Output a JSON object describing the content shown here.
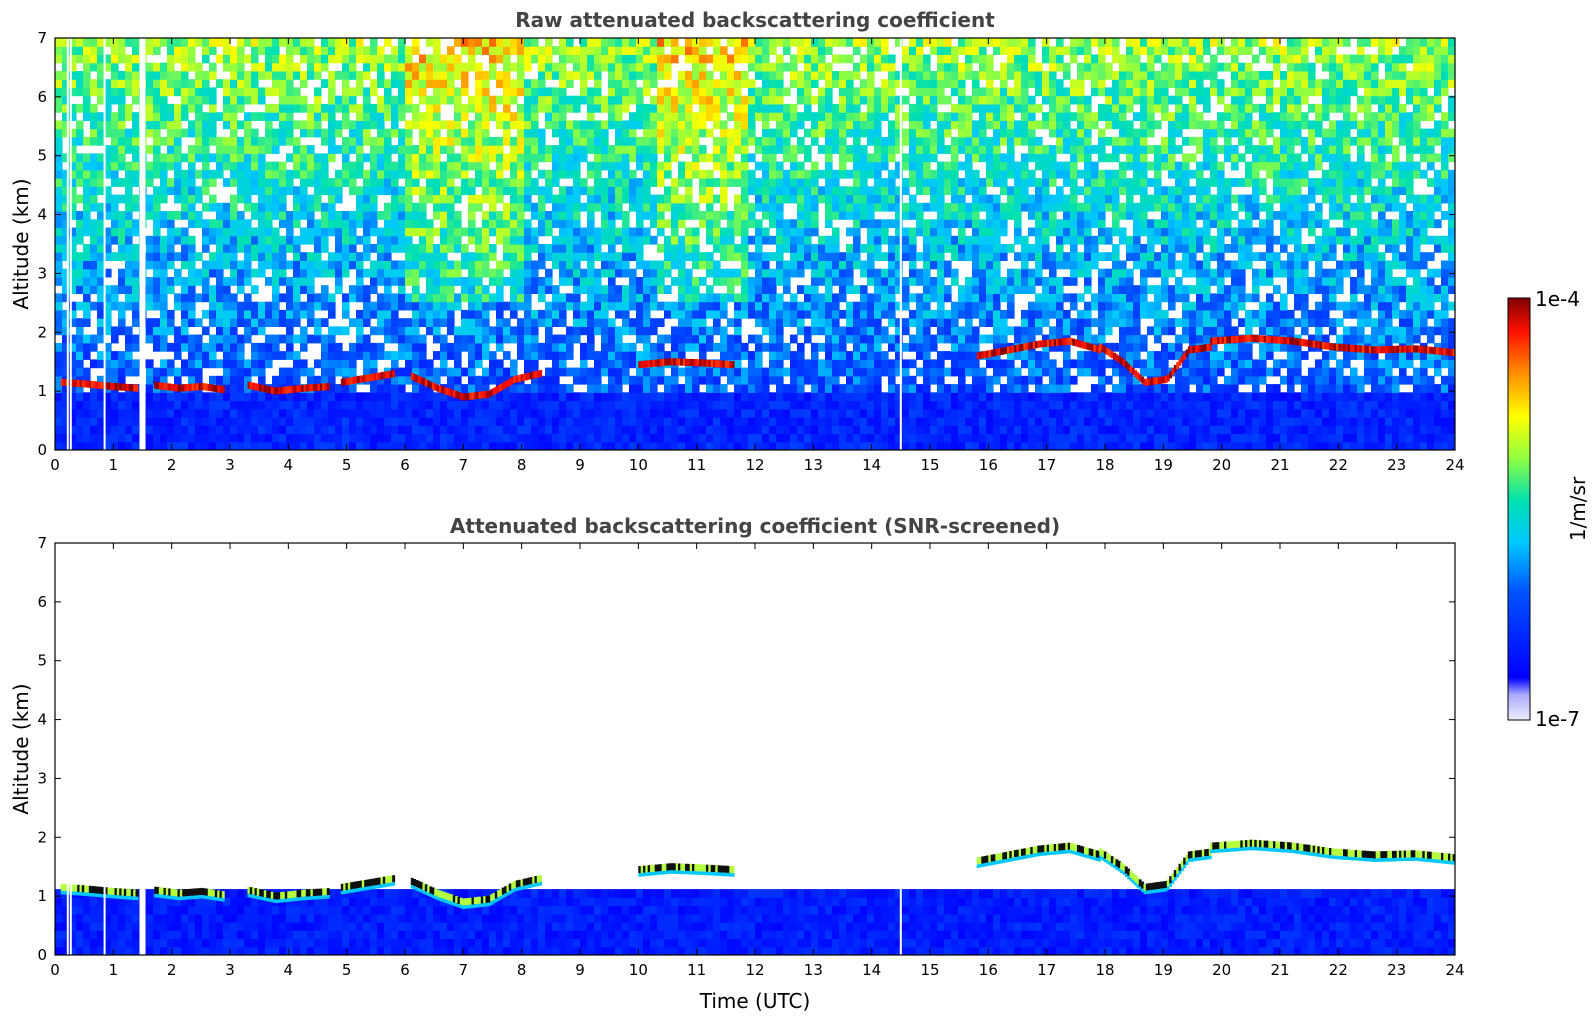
{
  "chart_data": [
    {
      "type": "heatmap",
      "title": "Raw attenuated backscattering coefficient",
      "xlabel": "",
      "ylabel": "Altitude (km)",
      "xlim": [
        0,
        24
      ],
      "ylim": [
        0,
        7
      ],
      "x_ticks": [
        0,
        1,
        2,
        3,
        4,
        5,
        6,
        7,
        8,
        9,
        10,
        11,
        12,
        13,
        14,
        15,
        16,
        17,
        18,
        19,
        20,
        21,
        22,
        23,
        24
      ],
      "y_ticks": [
        0,
        1,
        2,
        3,
        4,
        5,
        6,
        7
      ],
      "screened": false,
      "cloud_layers": [
        {
          "t_start": 0.1,
          "t_end": 1.4,
          "altitude_km": [
            1.15,
            1.12,
            1.08,
            1.05
          ]
        },
        {
          "t_start": 1.7,
          "t_end": 2.9,
          "altitude_km": [
            1.1,
            1.05,
            1.08,
            1.02
          ]
        },
        {
          "t_start": 3.3,
          "t_end": 4.7,
          "altitude_km": [
            1.1,
            1.0,
            1.05,
            1.08
          ]
        },
        {
          "t_start": 4.9,
          "t_end": 5.8,
          "altitude_km": [
            1.15,
            1.2,
            1.25,
            1.3
          ]
        },
        {
          "t_start": 6.1,
          "t_end": 8.3,
          "altitude_km": [
            1.25,
            1.05,
            0.9,
            0.95,
            1.2,
            1.3
          ]
        },
        {
          "t_start": 10.0,
          "t_end": 11.6,
          "altitude_km": [
            1.45,
            1.5,
            1.48,
            1.45
          ]
        },
        {
          "t_start": 15.8,
          "t_end": 17.9,
          "altitude_km": [
            1.6,
            1.7,
            1.8,
            1.85,
            1.7
          ]
        },
        {
          "t_start": 17.9,
          "t_end": 19.8,
          "altitude_km": [
            1.75,
            1.5,
            1.15,
            1.2,
            1.7,
            1.75
          ]
        },
        {
          "t_start": 19.8,
          "t_end": 24.0,
          "altitude_km": [
            1.85,
            1.9,
            1.85,
            1.75,
            1.7,
            1.72,
            1.65
          ]
        }
      ],
      "gaps_utc": [
        0.22,
        0.27,
        0.85,
        1.5,
        14.5
      ]
    },
    {
      "type": "heatmap",
      "title": "Attenuated backscattering coefficient (SNR-screened)",
      "xlabel": "Time (UTC)",
      "ylabel": "Altitude (km)",
      "xlim": [
        0,
        24
      ],
      "ylim": [
        0,
        7
      ],
      "x_ticks": [
        0,
        1,
        2,
        3,
        4,
        5,
        6,
        7,
        8,
        9,
        10,
        11,
        12,
        13,
        14,
        15,
        16,
        17,
        18,
        19,
        20,
        21,
        22,
        23,
        24
      ],
      "y_ticks": [
        0,
        1,
        2,
        3,
        4,
        5,
        6,
        7
      ],
      "screened": true,
      "cloud_layers": [
        {
          "t_start": 0.1,
          "t_end": 1.4,
          "altitude_km": [
            1.15,
            1.12,
            1.08,
            1.05
          ]
        },
        {
          "t_start": 1.7,
          "t_end": 2.9,
          "altitude_km": [
            1.1,
            1.05,
            1.08,
            1.02
          ]
        },
        {
          "t_start": 3.3,
          "t_end": 4.7,
          "altitude_km": [
            1.1,
            1.0,
            1.05,
            1.08
          ]
        },
        {
          "t_start": 4.9,
          "t_end": 5.8,
          "altitude_km": [
            1.15,
            1.2,
            1.25,
            1.3
          ]
        },
        {
          "t_start": 6.1,
          "t_end": 8.3,
          "altitude_km": [
            1.25,
            1.05,
            0.9,
            0.95,
            1.2,
            1.3
          ]
        },
        {
          "t_start": 10.0,
          "t_end": 11.6,
          "altitude_km": [
            1.45,
            1.5,
            1.48,
            1.45
          ]
        },
        {
          "t_start": 15.8,
          "t_end": 17.9,
          "altitude_km": [
            1.6,
            1.7,
            1.8,
            1.85,
            1.7
          ]
        },
        {
          "t_start": 17.9,
          "t_end": 19.8,
          "altitude_km": [
            1.75,
            1.5,
            1.15,
            1.2,
            1.7,
            1.75
          ]
        },
        {
          "t_start": 19.8,
          "t_end": 24.0,
          "altitude_km": [
            1.85,
            1.9,
            1.85,
            1.75,
            1.7,
            1.72,
            1.65
          ]
        }
      ],
      "gaps_utc": [
        0.22,
        0.27,
        0.85,
        1.5,
        14.5
      ]
    }
  ],
  "colorbar": {
    "label": "1/m/sr",
    "max_label": "1e-4",
    "min_label": "1e-7",
    "colors": [
      "#e8e8f8",
      "#0000ff",
      "#00c8ff",
      "#c8ff32",
      "#ffd000",
      "#ff2000",
      "#800000"
    ]
  }
}
